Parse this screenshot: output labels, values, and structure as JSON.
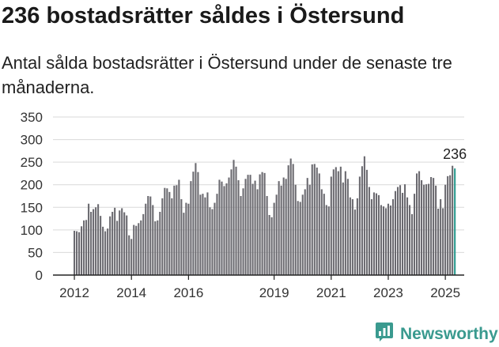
{
  "title": "236 bostadsrätter såldes i Östersund",
  "subtitle": "Antal sålda bostadsrätter i Östersund under de senaste tre månaderna.",
  "brand": {
    "name": "Newsworthy",
    "icon": "newsworthy-logo-icon",
    "color": "#3a9a8f"
  },
  "chart_data": {
    "type": "bar",
    "title": "",
    "xlabel": "",
    "ylabel": "",
    "ylim": [
      0,
      350
    ],
    "yticks": [
      0,
      50,
      100,
      150,
      200,
      250,
      300,
      350
    ],
    "x_tick_labels": [
      {
        "label": "2012",
        "index": 0
      },
      {
        "label": "2014",
        "index": 24
      },
      {
        "label": "2016",
        "index": 48
      },
      {
        "label": "2019",
        "index": 84
      },
      {
        "label": "2021",
        "index": 108
      },
      {
        "label": "2023",
        "index": 132
      },
      {
        "label": "2025",
        "index": 156
      }
    ],
    "grid": true,
    "bar_color": "#6b6a70",
    "highlight_color": "#2a9a8e",
    "highlight_label": "236",
    "values": [
      98,
      97,
      95,
      108,
      121,
      122,
      158,
      140,
      146,
      150,
      157,
      131,
      107,
      97,
      103,
      130,
      140,
      149,
      120,
      143,
      148,
      139,
      132,
      88,
      80,
      111,
      109,
      115,
      121,
      135,
      158,
      175,
      174,
      155,
      119,
      121,
      140,
      170,
      193,
      192,
      184,
      170,
      198,
      199,
      211,
      168,
      138,
      160,
      158,
      208,
      229,
      248,
      228,
      178,
      180,
      172,
      183,
      150,
      146,
      160,
      180,
      211,
      207,
      197,
      203,
      216,
      234,
      255,
      240,
      210,
      175,
      192,
      213,
      222,
      222,
      202,
      209,
      190,
      223,
      228,
      226,
      175,
      133,
      128,
      160,
      178,
      208,
      198,
      216,
      213,
      243,
      258,
      246,
      200,
      164,
      162,
      178,
      190,
      215,
      200,
      245,
      246,
      238,
      225,
      190,
      180,
      155,
      152,
      218,
      234,
      239,
      230,
      240,
      205,
      230,
      213,
      172,
      168,
      145,
      170,
      218,
      241,
      263,
      233,
      195,
      168,
      183,
      181,
      177,
      155,
      152,
      148,
      158,
      154,
      168,
      186,
      195,
      199,
      182,
      201,
      172,
      155,
      135,
      180,
      225,
      230,
      210,
      200,
      201,
      202,
      217,
      215,
      198,
      147,
      168,
      148,
      200,
      219,
      221,
      242,
      236
    ]
  }
}
